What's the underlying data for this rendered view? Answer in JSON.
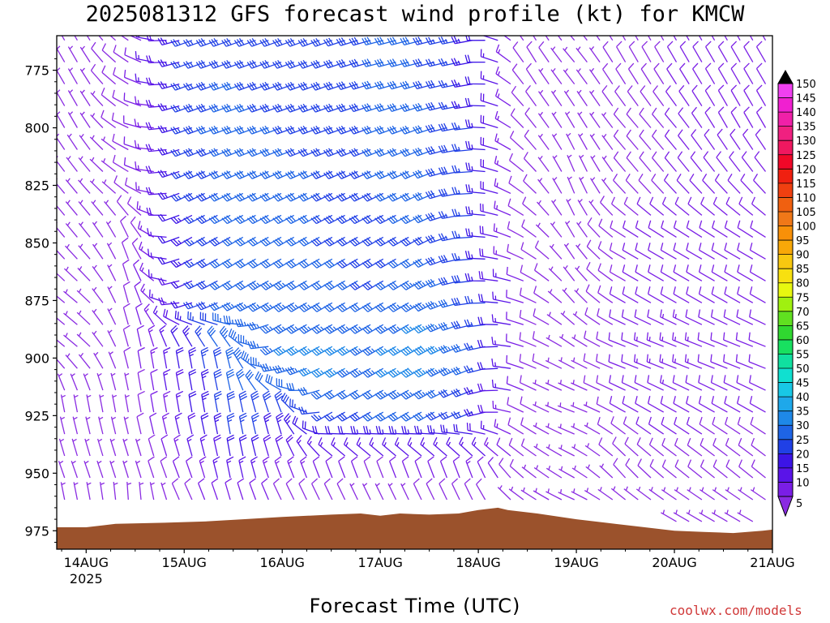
{
  "chart_data": {
    "type": "wind-barb-profile",
    "title": "2025081312 GFS forecast wind profile (kt) for KMCW",
    "xlabel": "Forecast Time (UTC)",
    "credit": "coolwx.com/models",
    "x_ticks": [
      "14AUG",
      "15AUG",
      "16AUG",
      "17AUG",
      "18AUG",
      "19AUG",
      "20AUG",
      "21AUG"
    ],
    "x_year_label": "2025",
    "x_range_days": [
      -0.3,
      7.0
    ],
    "y_ticks": [
      775,
      800,
      825,
      850,
      875,
      900,
      925,
      950,
      975
    ],
    "y_range_hpa": [
      760,
      983
    ],
    "y_orientation": "pressure increasing downward",
    "color_scale": {
      "levels": [
        5,
        10,
        15,
        20,
        25,
        30,
        35,
        40,
        45,
        50,
        55,
        60,
        65,
        70,
        75,
        80,
        85,
        90,
        95,
        100,
        105,
        110,
        115,
        120,
        125,
        130,
        135,
        140,
        145,
        150
      ],
      "colors": [
        "#8a2be2",
        "#7a1ee6",
        "#5a14e8",
        "#3c14e6",
        "#2040e6",
        "#1e64e6",
        "#1e88e8",
        "#1ea8ea",
        "#18c8e6",
        "#10e0d0",
        "#10e0a0",
        "#18e060",
        "#30d830",
        "#60e020",
        "#a0f010",
        "#e8f810",
        "#f8e010",
        "#f8c810",
        "#f8a808",
        "#f89008",
        "#f07818",
        "#f06010",
        "#f04010",
        "#f02010",
        "#f00828",
        "#f01860",
        "#f02080",
        "#f020a8",
        "#f020d0",
        "#f040f0"
      ]
    },
    "winds": [
      {
        "t": 0.0,
        "profile": [
          [
            970,
            3,
            0
          ],
          [
            955,
            5,
            340
          ],
          [
            920,
            5,
            350
          ],
          [
            900,
            5,
            310
          ],
          [
            875,
            5,
            310
          ],
          [
            850,
            5,
            320
          ],
          [
            825,
            6,
            320
          ],
          [
            800,
            7,
            330
          ],
          [
            775,
            7,
            330
          ]
        ]
      },
      {
        "t": 0.5,
        "profile": [
          [
            970,
            4,
            10
          ],
          [
            950,
            6,
            340
          ],
          [
            925,
            7,
            350
          ],
          [
            900,
            9,
            350
          ],
          [
            875,
            9,
            350
          ],
          [
            850,
            8,
            340
          ],
          [
            825,
            8,
            300
          ],
          [
            800,
            8,
            290
          ],
          [
            775,
            9,
            300
          ]
        ]
      },
      {
        "t": 1.0,
        "profile": [
          [
            970,
            6,
            330
          ],
          [
            950,
            12,
            340
          ],
          [
            925,
            18,
            350
          ],
          [
            900,
            22,
            350
          ],
          [
            875,
            20,
            250
          ],
          [
            850,
            22,
            240
          ],
          [
            825,
            25,
            245
          ],
          [
            800,
            26,
            250
          ],
          [
            775,
            25,
            250
          ]
        ]
      },
      {
        "t": 1.5,
        "profile": [
          [
            970,
            8,
            340
          ],
          [
            950,
            18,
            350
          ],
          [
            925,
            30,
            350
          ],
          [
            900,
            35,
            345
          ],
          [
            875,
            32,
            240
          ],
          [
            850,
            30,
            240
          ],
          [
            825,
            32,
            245
          ],
          [
            800,
            32,
            250
          ],
          [
            775,
            30,
            250
          ]
        ]
      },
      {
        "t": 2.0,
        "profile": [
          [
            970,
            6,
            330
          ],
          [
            950,
            15,
            340
          ],
          [
            925,
            28,
            345
          ],
          [
            900,
            35,
            240
          ],
          [
            875,
            35,
            240
          ],
          [
            850,
            30,
            240
          ],
          [
            825,
            32,
            245
          ],
          [
            800,
            30,
            250
          ],
          [
            775,
            28,
            250
          ]
        ]
      },
      {
        "t": 2.5,
        "profile": [
          [
            970,
            5,
            330
          ],
          [
            950,
            12,
            340
          ],
          [
            925,
            25,
            240
          ],
          [
            900,
            38,
            240
          ],
          [
            875,
            32,
            240
          ],
          [
            850,
            30,
            240
          ],
          [
            825,
            30,
            245
          ],
          [
            800,
            28,
            250
          ],
          [
            775,
            28,
            250
          ]
        ]
      },
      {
        "t": 3.0,
        "profile": [
          [
            970,
            4,
            330
          ],
          [
            950,
            10,
            340
          ],
          [
            925,
            30,
            240
          ],
          [
            900,
            35,
            240
          ],
          [
            875,
            30,
            240
          ],
          [
            850,
            28,
            240
          ],
          [
            825,
            30,
            245
          ],
          [
            800,
            30,
            250
          ],
          [
            775,
            30,
            255
          ]
        ]
      },
      {
        "t": 3.5,
        "profile": [
          [
            970,
            5,
            330
          ],
          [
            950,
            12,
            340
          ],
          [
            925,
            30,
            240
          ],
          [
            900,
            40,
            240
          ],
          [
            875,
            35,
            240
          ],
          [
            850,
            30,
            240
          ],
          [
            825,
            32,
            245
          ],
          [
            800,
            32,
            250
          ],
          [
            775,
            30,
            255
          ]
        ]
      },
      {
        "t": 4.0,
        "profile": [
          [
            970,
            6,
            330
          ],
          [
            950,
            14,
            340
          ],
          [
            925,
            25,
            250
          ],
          [
            900,
            30,
            250
          ],
          [
            875,
            28,
            265
          ],
          [
            850,
            25,
            270
          ],
          [
            825,
            25,
            270
          ],
          [
            800,
            25,
            265
          ],
          [
            775,
            22,
            260
          ]
        ]
      },
      {
        "t": 4.5,
        "profile": [
          [
            970,
            5,
            300
          ],
          [
            950,
            8,
            310
          ],
          [
            925,
            8,
            300
          ],
          [
            900,
            10,
            290
          ],
          [
            875,
            10,
            290
          ],
          [
            850,
            8,
            300
          ],
          [
            825,
            8,
            310
          ],
          [
            800,
            8,
            320
          ],
          [
            775,
            8,
            330
          ]
        ]
      },
      {
        "t": 5.0,
        "profile": [
          [
            970,
            5,
            290
          ],
          [
            950,
            6,
            300
          ],
          [
            925,
            5,
            290
          ],
          [
            900,
            5,
            300
          ],
          [
            875,
            6,
            320
          ],
          [
            850,
            7,
            330
          ],
          [
            825,
            5,
            340
          ],
          [
            800,
            6,
            330
          ],
          [
            775,
            7,
            320
          ]
        ]
      },
      {
        "t": 5.5,
        "profile": [
          [
            970,
            6,
            300
          ],
          [
            950,
            8,
            320
          ],
          [
            925,
            10,
            300
          ],
          [
            900,
            12,
            290
          ],
          [
            875,
            10,
            300
          ],
          [
            850,
            10,
            300
          ],
          [
            825,
            8,
            320
          ],
          [
            800,
            8,
            320
          ],
          [
            775,
            8,
            330
          ]
        ]
      },
      {
        "t": 6.0,
        "profile": [
          [
            970,
            6,
            300
          ],
          [
            950,
            9,
            310
          ],
          [
            925,
            12,
            300
          ],
          [
            900,
            14,
            290
          ],
          [
            875,
            12,
            300
          ],
          [
            850,
            12,
            300
          ],
          [
            825,
            10,
            320
          ],
          [
            800,
            10,
            320
          ],
          [
            775,
            10,
            330
          ]
        ]
      },
      {
        "t": 6.5,
        "profile": [
          [
            970,
            6,
            300
          ],
          [
            950,
            8,
            310
          ],
          [
            925,
            10,
            300
          ],
          [
            900,
            12,
            290
          ],
          [
            875,
            12,
            300
          ],
          [
            850,
            12,
            300
          ],
          [
            825,
            10,
            320
          ],
          [
            800,
            10,
            330
          ],
          [
            775,
            10,
            330
          ]
        ]
      },
      {
        "t": 7.0,
        "profile": [
          [
            970,
            6,
            300
          ],
          [
            950,
            8,
            310
          ],
          [
            925,
            10,
            300
          ],
          [
            900,
            12,
            290
          ],
          [
            875,
            12,
            300
          ],
          [
            850,
            12,
            300
          ],
          [
            825,
            10,
            320
          ],
          [
            800,
            10,
            330
          ],
          [
            775,
            10,
            330
          ]
        ]
      }
    ],
    "terrain_surface_hpa": [
      [
        -0.3,
        973.5
      ],
      [
        0.0,
        973.5
      ],
      [
        0.3,
        972
      ],
      [
        0.8,
        971.5
      ],
      [
        1.2,
        971
      ],
      [
        1.6,
        970
      ],
      [
        2.0,
        969
      ],
      [
        2.5,
        968
      ],
      [
        2.8,
        967.5
      ],
      [
        3.0,
        968.5
      ],
      [
        3.2,
        967.5
      ],
      [
        3.5,
        968
      ],
      [
        3.8,
        967.5
      ],
      [
        4.0,
        966
      ],
      [
        4.2,
        965
      ],
      [
        4.3,
        966
      ],
      [
        4.6,
        967.5
      ],
      [
        5.0,
        970
      ],
      [
        5.3,
        971.5
      ],
      [
        5.6,
        973
      ],
      [
        6.0,
        975
      ],
      [
        6.3,
        975.5
      ],
      [
        6.6,
        976
      ],
      [
        6.9,
        975
      ],
      [
        7.0,
        974.5
      ]
    ],
    "colors": {
      "terrain": "#9b522c",
      "frame": "#000000",
      "credit": "#d03838"
    }
  }
}
